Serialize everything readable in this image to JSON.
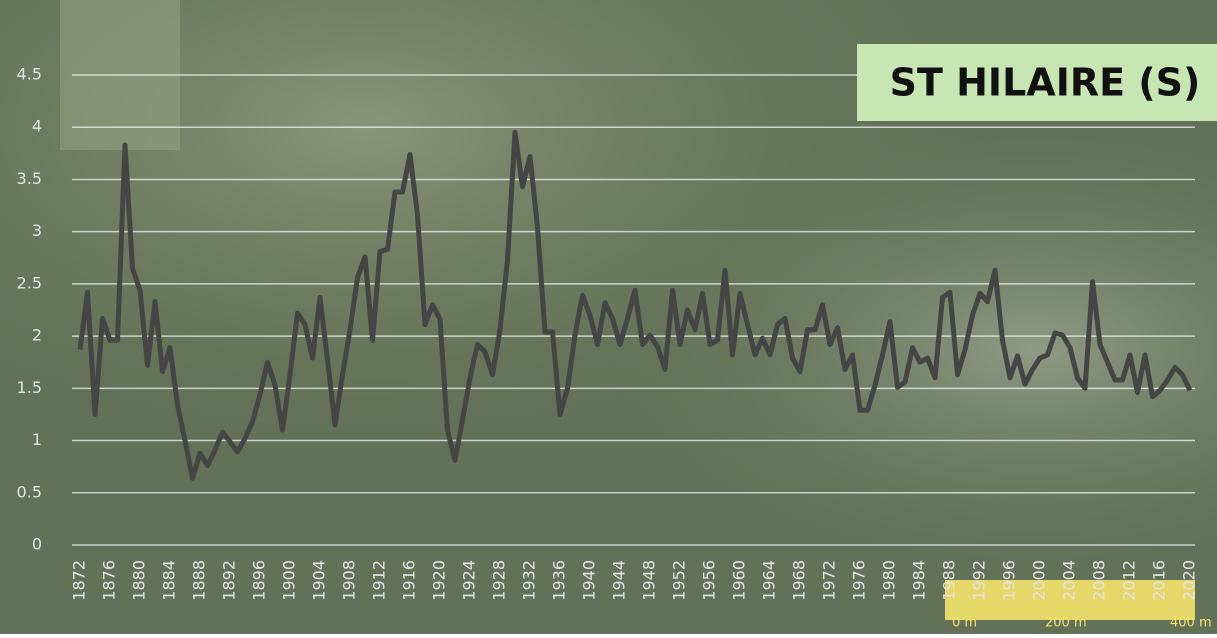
{
  "chart_data": {
    "type": "line",
    "title": "ST HILAIRE (S)",
    "x": [
      1872,
      1873,
      1874,
      1875,
      1876,
      1877,
      1878,
      1879,
      1880,
      1881,
      1882,
      1883,
      1884,
      1885,
      1886,
      1887,
      1888,
      1889,
      1890,
      1891,
      1892,
      1893,
      1894,
      1895,
      1896,
      1897,
      1898,
      1899,
      1900,
      1901,
      1902,
      1903,
      1904,
      1905,
      1906,
      1907,
      1908,
      1909,
      1910,
      1911,
      1912,
      1913,
      1914,
      1915,
      1916,
      1917,
      1918,
      1919,
      1920,
      1921,
      1922,
      1923,
      1924,
      1925,
      1926,
      1927,
      1928,
      1929,
      1930,
      1931,
      1932,
      1933,
      1934,
      1935,
      1936,
      1937,
      1938,
      1939,
      1940,
      1941,
      1942,
      1943,
      1944,
      1945,
      1946,
      1947,
      1948,
      1949,
      1950,
      1951,
      1952,
      1953,
      1954,
      1955,
      1956,
      1957,
      1958,
      1959,
      1960,
      1961,
      1962,
      1963,
      1964,
      1965,
      1966,
      1967,
      1968,
      1969,
      1970,
      1971,
      1972,
      1973,
      1974,
      1975,
      1976,
      1977,
      1978,
      1979,
      1980,
      1981,
      1982,
      1983,
      1984,
      1985,
      1986,
      1987,
      1988,
      1989,
      1990,
      1991,
      1992,
      1993,
      1994,
      1995,
      1996,
      1997,
      1998,
      1999,
      2000,
      2001,
      2002,
      2003,
      2004,
      2005,
      2006,
      2007,
      2008,
      2009,
      2010,
      2011,
      2012,
      2013,
      2014,
      2015,
      2016,
      2017,
      2018,
      2019,
      2020
    ],
    "values": [
      1.87,
      2.42,
      1.25,
      2.17,
      1.96,
      1.96,
      3.83,
      2.65,
      2.44,
      1.72,
      2.33,
      1.66,
      1.89,
      1.34,
      1.0,
      0.64,
      0.88,
      0.76,
      0.91,
      1.08,
      0.99,
      0.89,
      1.02,
      1.18,
      1.44,
      1.75,
      1.53,
      1.1,
      1.63,
      2.22,
      2.11,
      1.79,
      2.37,
      1.77,
      1.15,
      1.63,
      2.06,
      2.56,
      2.76,
      1.96,
      2.81,
      2.83,
      3.38,
      3.38,
      3.74,
      3.16,
      2.11,
      2.3,
      2.16,
      1.1,
      0.81,
      1.2,
      1.6,
      1.92,
      1.85,
      1.63,
      2.06,
      2.73,
      3.95,
      3.43,
      3.72,
      3.04,
      2.04,
      2.04,
      1.25,
      1.5,
      2.01,
      2.39,
      2.2,
      1.92,
      2.32,
      2.17,
      1.92,
      2.17,
      2.44,
      1.92,
      2.01,
      1.9,
      1.68,
      2.44,
      1.92,
      2.25,
      2.06,
      2.41,
      1.92,
      1.96,
      2.63,
      1.82,
      2.41,
      2.11,
      1.82,
      1.98,
      1.82,
      2.11,
      2.17,
      1.79,
      1.66,
      2.06,
      2.06,
      2.3,
      1.92,
      2.08,
      1.68,
      1.82,
      1.29,
      1.29,
      1.53,
      1.82,
      2.14,
      1.51,
      1.56,
      1.89,
      1.75,
      1.79,
      1.6,
      2.37,
      2.42,
      1.63,
      1.87,
      2.2,
      2.41,
      2.33,
      2.63,
      1.96,
      1.6,
      1.81,
      1.54,
      1.68,
      1.79,
      1.82,
      2.03,
      2.01,
      1.89,
      1.6,
      1.5,
      2.52,
      1.92,
      1.75,
      1.58,
      1.58,
      1.82,
      1.46,
      1.82,
      1.42,
      1.48,
      1.58,
      1.7,
      1.63,
      1.48
    ],
    "color": "#454545",
    "xlim": [
      1872,
      2020
    ],
    "xticks": [
      1872,
      1876,
      1880,
      1884,
      1888,
      1892,
      1896,
      1900,
      1904,
      1908,
      1912,
      1916,
      1920,
      1924,
      1928,
      1932,
      1936,
      1940,
      1944,
      1948,
      1952,
      1956,
      1960,
      1964,
      1968,
      1972,
      1976,
      1980,
      1984,
      1988,
      1992,
      1996,
      2000,
      2004,
      2008,
      2012,
      2016,
      2020
    ],
    "ylim": [
      0,
      4.5
    ],
    "yticks": [
      0,
      0.5,
      1,
      1.5,
      2,
      2.5,
      3,
      3.5,
      4,
      4.5
    ],
    "grid": true
  },
  "map_scale": [
    "0 m",
    "200 m",
    "400 m"
  ]
}
